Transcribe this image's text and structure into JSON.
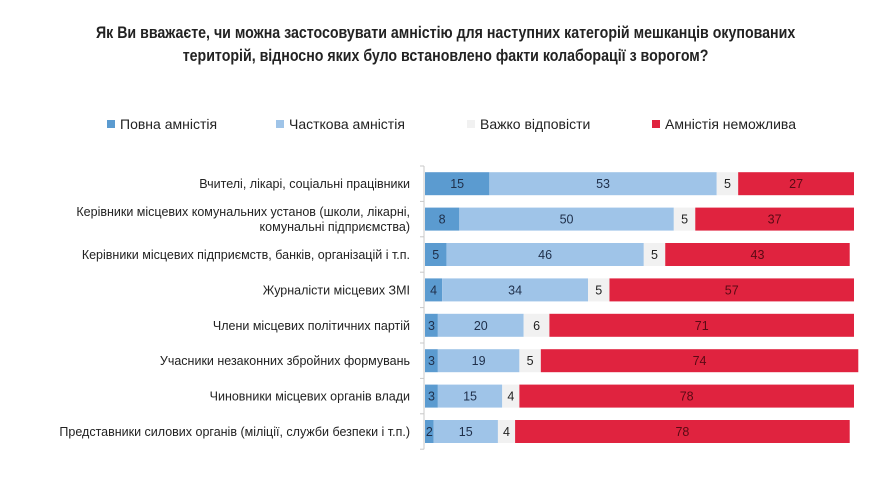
{
  "chart_data": {
    "type": "bar",
    "orientation": "horizontal",
    "stacked": true,
    "title": "Як Ви вважаєте, чи можна застосовувати амністію для наступних категорій мешканців окупованих територій, відносно яких було встановлено факти колаборації з ворогом?",
    "title_lines": [
      "Як Ви вважаєте, чи можна застосовувати амністію для наступних категорій мешканців окупованих",
      "територій, відносно яких було встановлено факти колаборації з ворогом?"
    ],
    "xlabel": "",
    "ylabel": "",
    "xlim": [
      0,
      100
    ],
    "grid": false,
    "legend_position": "top",
    "categories": [
      "Вчителі, лікарі, соціальні працівники",
      "Керівники місцевих комунальних установ (школи, лікарні, комунальні підприємства)",
      "Керівники місцевих підприємств, банків, організацій і т.п.",
      "Журналісти місцевих ЗМІ",
      "Члени місцевих політичних партій",
      "Учасники незаконних збройних формувань",
      "Чиновники місцевих органів влади",
      "Представники силових органів (міліції, служби безпеки і т.п.)"
    ],
    "category_lines": [
      [
        "Вчителі, лікарі, соціальні працівники"
      ],
      [
        "Керівники місцевих комунальних установ (школи, лікарні,",
        "комунальні підприємства)"
      ],
      [
        "Керівники місцевих підприємств, банків, організацій і т.п."
      ],
      [
        "Журналісти місцевих ЗМІ"
      ],
      [
        "Члени місцевих політичних партій"
      ],
      [
        "Учасники незаконних збройних формувань"
      ],
      [
        "Чиновники місцевих органів влади"
      ],
      [
        "Представники силових органів (міліції, служби безпеки і т.п.)"
      ]
    ],
    "series": [
      {
        "name": "Повна амністія",
        "color": "#5b9bd0",
        "label_color": "#1f2f4a",
        "values": [
          15,
          8,
          5,
          4,
          3,
          3,
          3,
          2
        ]
      },
      {
        "name": "Часткова амністія",
        "color": "#9fc4e8",
        "label_color": "#1f2f4a",
        "values": [
          53,
          50,
          46,
          34,
          20,
          19,
          15,
          15
        ]
      },
      {
        "name": "Важко відповісти",
        "color": "#f1f1f1",
        "label_color": "#222222",
        "values": [
          5,
          5,
          5,
          5,
          6,
          5,
          4,
          4
        ]
      },
      {
        "name": "Амністія неможлива",
        "color": "#e0233f",
        "label_color": "#5a0a14",
        "values": [
          27,
          37,
          43,
          57,
          71,
          74,
          78,
          78
        ]
      }
    ]
  }
}
